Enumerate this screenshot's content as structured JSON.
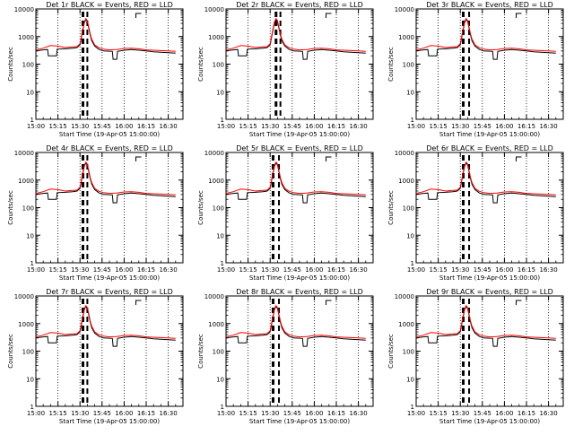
{
  "chart_data": {
    "type": "line",
    "yscale": "log",
    "ylim": [
      1,
      10000
    ],
    "ylabel": "Counts/sec",
    "xlabel": "Start Time (19-Apr-05 15:00:00)",
    "xlim_minutes_after_start": [
      0,
      100
    ],
    "yticks": [
      "1",
      "10",
      "100",
      "1000",
      "10000"
    ],
    "xticks": [
      "15:00",
      "15:15",
      "15:30",
      "15:45",
      "16:00",
      "16:15",
      "16:30"
    ],
    "series_colors": {
      "events": "#000000",
      "lld": "#ff0000"
    },
    "panels": [
      {
        "title": "Det 1r BLACK = Events, RED = LLD",
        "marker_times": [
          32,
          35
        ],
        "gap_marker": 68
      },
      {
        "title": "Det 2r BLACK = Events, RED = LLD",
        "marker_times": [
          34,
          37
        ],
        "gap_marker": 68
      },
      {
        "title": "Det 3r BLACK = Events, RED = LLD",
        "marker_times": [
          32,
          36
        ],
        "gap_marker": 68
      },
      {
        "title": "Det 4r BLACK = Events, RED = LLD",
        "marker_times": [
          32,
          35
        ],
        "gap_marker": 68
      },
      {
        "title": "Det 5r BLACK = Events, RED = LLD",
        "marker_times": [
          32,
          36
        ],
        "gap_marker": 68
      },
      {
        "title": "Det 6r BLACK = Events, RED = LLD",
        "marker_times": [
          32,
          36
        ],
        "gap_marker": 68
      },
      {
        "title": "Det 7r BLACK = Events, RED = LLD",
        "marker_times": [
          32,
          35
        ],
        "gap_marker": 68
      },
      {
        "title": "Det 8r BLACK = Events, RED = LLD",
        "marker_times": [
          32,
          36
        ],
        "gap_marker": 68
      },
      {
        "title": "Det 9r BLACK = Events, RED = LLD",
        "marker_times": [
          32,
          36
        ],
        "gap_marker": 68
      }
    ],
    "red_series": {
      "x": [
        0,
        5,
        10,
        15,
        20,
        25,
        28,
        30,
        32,
        33,
        34,
        35,
        36,
        37,
        38,
        40,
        43,
        46,
        50,
        55,
        60,
        65,
        70,
        75,
        80,
        85,
        90,
        95
      ],
      "y": [
        330,
        380,
        470,
        450,
        400,
        420,
        430,
        550,
        2000,
        3500,
        4500,
        3800,
        2200,
        1200,
        800,
        500,
        390,
        350,
        330,
        340,
        370,
        380,
        360,
        330,
        320,
        310,
        300,
        290
      ]
    },
    "black_series": {
      "x": [
        0,
        5,
        8,
        8.5,
        14,
        14.5,
        20,
        25,
        28,
        30,
        32,
        33,
        34,
        35,
        36,
        37,
        38,
        40,
        43,
        46,
        52,
        52.5,
        55,
        55.5,
        60,
        65,
        70,
        75,
        80,
        85,
        90,
        95
      ],
      "y": [
        300,
        330,
        340,
        200,
        200,
        350,
        360,
        380,
        400,
        500,
        1800,
        3200,
        4200,
        3500,
        2000,
        1100,
        700,
        450,
        340,
        300,
        290,
        150,
        150,
        290,
        320,
        340,
        320,
        300,
        280,
        270,
        260,
        250
      ]
    }
  }
}
